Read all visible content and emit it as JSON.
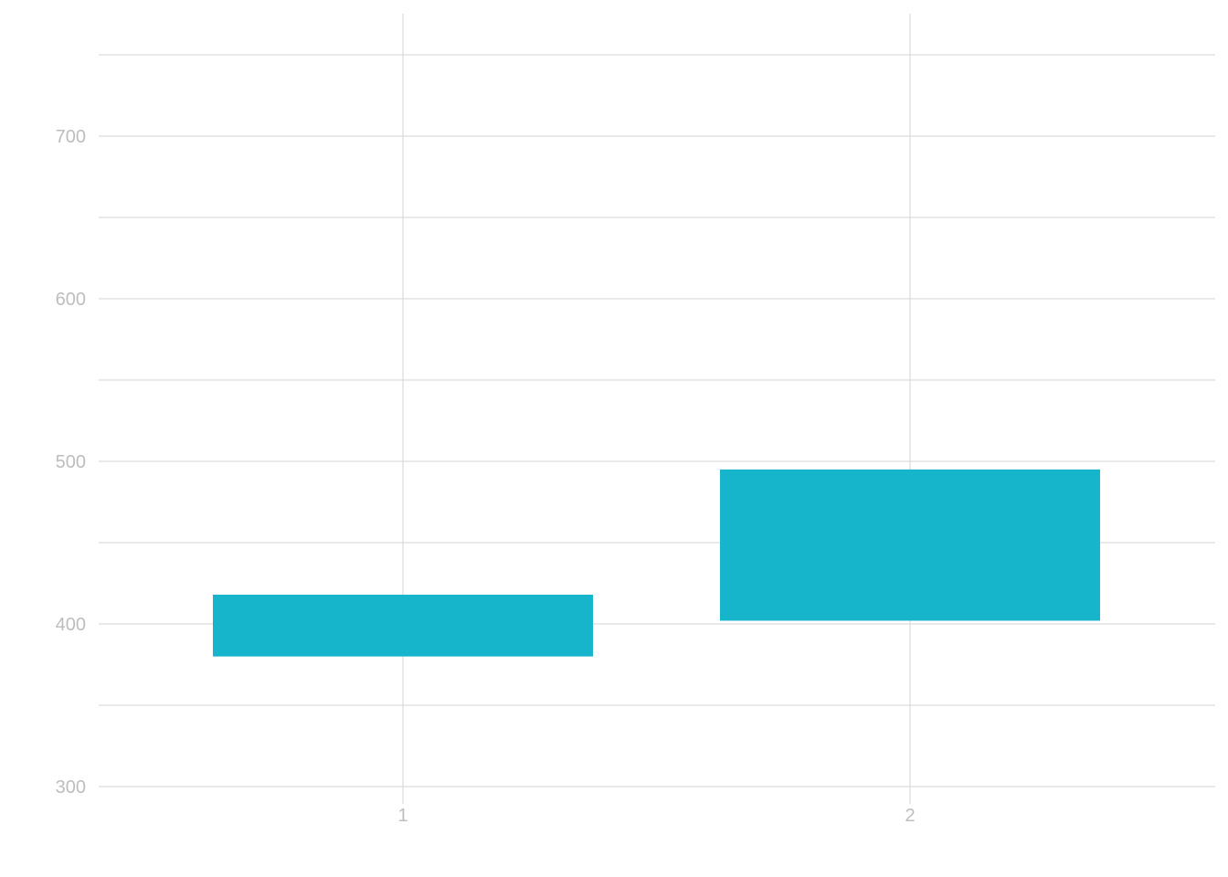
{
  "chart_data": {
    "type": "bar",
    "subtype": "floating",
    "title": "",
    "xlabel": "",
    "ylabel": "",
    "categories": [
      "1",
      "2"
    ],
    "ranges": [
      {
        "category": "1",
        "low": 380,
        "high": 418
      },
      {
        "category": "2",
        "low": 402,
        "high": 495
      }
    ],
    "ylim": [
      280,
      760
    ],
    "y_ticks": [
      300,
      400,
      500,
      600,
      700
    ],
    "y_minor_grid": [
      350,
      450,
      550,
      650,
      750
    ],
    "x_ticks": [
      "1",
      "2"
    ],
    "grid": true,
    "legend": "none",
    "bar_color": "#17b5cb",
    "grid_color": "#d3d3d3",
    "tick_label_color": "#bdbdbd",
    "background": "#ffffff"
  }
}
